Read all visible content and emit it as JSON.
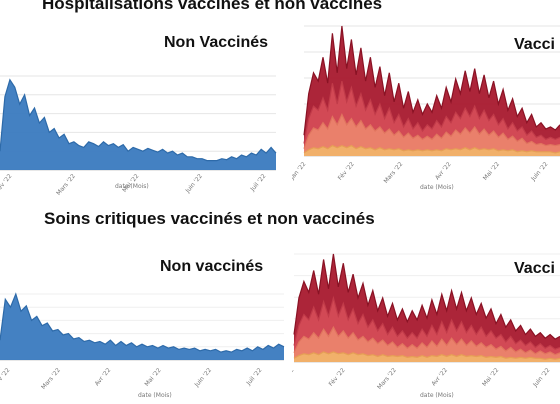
{
  "titles": {
    "top": "Hospitalisations vaccinés et non vaccinés",
    "bottom": "Soins critiques vaccinés et non vaccinés"
  },
  "colors": {
    "unvaccinated": "#3a7abf",
    "vax_dark": "#a8192e",
    "vax_mid": "#d8505a",
    "vax_light": "#ee8a70",
    "vax_orange": "#f2b86a"
  },
  "chart_data": [
    {
      "type": "area",
      "panel": "hosp-unvaccinated",
      "label": "Non Vaccinés",
      "xlabel": "date (Mois)",
      "x_ticks": [
        "Fév '22",
        "Mars '22",
        "Mai '22",
        "Juin '22",
        "Juil '22"
      ],
      "series": [
        {
          "values": [
            20,
            78,
            96,
            88,
            70,
            80,
            58,
            66,
            50,
            56,
            40,
            44,
            34,
            38,
            28,
            30,
            26,
            24,
            30,
            28,
            25,
            30,
            26,
            28,
            24,
            27,
            20,
            24,
            22,
            20,
            23,
            21,
            19,
            22,
            18,
            20,
            16,
            18,
            14,
            14,
            12,
            12,
            10,
            10,
            10,
            12,
            11,
            14,
            12,
            16,
            14,
            18,
            16,
            22,
            18,
            24,
            18
          ]
        }
      ]
    },
    {
      "type": "area",
      "panel": "hosp-vaccinated",
      "label": "Vacci",
      "xlabel": "date (Mois)",
      "x_ticks": [
        "Jan '22",
        "Fév '22",
        "Mars '22",
        "Avr '22",
        "Mai '22",
        "Juin '22"
      ],
      "series": [
        {
          "values": [
            20,
            60,
            80,
            72,
            95,
            70,
            118,
            80,
            125,
            84,
            112,
            78,
            104,
            72,
            95,
            66,
            86,
            58,
            80,
            52,
            70,
            46,
            62,
            42,
            54,
            40,
            50,
            42,
            58,
            46,
            66,
            52,
            74,
            60,
            82,
            62,
            84,
            60,
            78,
            56,
            72,
            50,
            64,
            44,
            55,
            38,
            46,
            32,
            40,
            28,
            32,
            26,
            28,
            25,
            30
          ]
        },
        {
          "values": [
            12,
            36,
            48,
            44,
            56,
            44,
            70,
            50,
            72,
            52,
            66,
            48,
            60,
            44,
            54,
            40,
            50,
            36,
            46,
            32,
            40,
            28,
            36,
            26,
            32,
            24,
            30,
            26,
            34,
            28,
            38,
            32,
            42,
            36,
            46,
            38,
            48,
            36,
            44,
            34,
            40,
            30,
            36,
            26,
            32,
            24,
            28,
            20,
            24,
            18,
            20,
            16,
            18,
            16,
            18
          ]
        },
        {
          "values": [
            7,
            20,
            27,
            25,
            32,
            26,
            38,
            30,
            40,
            30,
            36,
            28,
            34,
            26,
            30,
            24,
            28,
            22,
            26,
            20,
            24,
            18,
            22,
            17,
            20,
            16,
            19,
            16,
            21,
            17,
            23,
            19,
            25,
            21,
            27,
            22,
            28,
            21,
            26,
            20,
            24,
            18,
            22,
            16,
            19,
            14,
            17,
            12,
            14,
            11,
            12,
            10,
            11,
            10,
            11
          ]
        },
        {
          "values": [
            3,
            6,
            8,
            7,
            9,
            7,
            10,
            8,
            10,
            8,
            10,
            7,
            9,
            7,
            8,
            6,
            8,
            6,
            7,
            6,
            7,
            5,
            6,
            5,
            6,
            5,
            6,
            5,
            6,
            5,
            7,
            6,
            7,
            6,
            8,
            6,
            8,
            6,
            7,
            6,
            7,
            5,
            6,
            5,
            6,
            4,
            5,
            4,
            5,
            4,
            4,
            4,
            4,
            3,
            4
          ]
        }
      ]
    },
    {
      "type": "area",
      "panel": "icu-unvaccinated",
      "label": "Non vaccinés",
      "xlabel": "date (Mois)",
      "x_ticks": [
        "Fév '22",
        "Mars '22",
        "Avr '22",
        "Mai '22",
        "Juin '22",
        "Juil '22"
      ],
      "series": [
        {
          "values": [
            30,
            92,
            80,
            100,
            74,
            82,
            60,
            66,
            52,
            56,
            44,
            46,
            38,
            40,
            32,
            34,
            28,
            30,
            26,
            28,
            24,
            30,
            22,
            28,
            22,
            26,
            20,
            24,
            20,
            22,
            18,
            22,
            18,
            20,
            16,
            18,
            16,
            18,
            14,
            16,
            14,
            16,
            12,
            14,
            12,
            16,
            14,
            18,
            14,
            20,
            16,
            22,
            18,
            24,
            20
          ]
        }
      ]
    },
    {
      "type": "area",
      "panel": "icu-vaccinated",
      "label": "Vacci",
      "xlabel": "date (Mois)",
      "x_ticks": [
        "Jan '22",
        "Fév '22",
        "Mars '22",
        "Avr '22",
        "Mai '22",
        "Juin '22"
      ],
      "series": [
        {
          "values": [
            30,
            70,
            88,
            76,
            100,
            74,
            112,
            80,
            118,
            82,
            108,
            76,
            96,
            70,
            86,
            62,
            78,
            56,
            70,
            50,
            64,
            46,
            58,
            44,
            56,
            46,
            62,
            48,
            68,
            52,
            74,
            56,
            78,
            58,
            76,
            56,
            70,
            52,
            64,
            48,
            58,
            42,
            52,
            38,
            46,
            34,
            40,
            30,
            36,
            28,
            32,
            26,
            30,
            25,
            28
          ]
        },
        {
          "values": [
            18,
            40,
            52,
            46,
            60,
            46,
            66,
            50,
            70,
            50,
            64,
            46,
            58,
            42,
            52,
            38,
            46,
            34,
            42,
            30,
            38,
            28,
            34,
            26,
            32,
            26,
            36,
            28,
            40,
            30,
            44,
            32,
            46,
            34,
            44,
            32,
            40,
            30,
            38,
            28,
            34,
            26,
            30,
            22,
            28,
            20,
            24,
            18,
            22,
            16,
            20,
            15,
            18,
            14,
            16
          ]
        },
        {
          "values": [
            10,
            22,
            28,
            25,
            32,
            26,
            36,
            28,
            38,
            28,
            34,
            26,
            32,
            24,
            28,
            22,
            26,
            20,
            24,
            18,
            22,
            16,
            20,
            15,
            19,
            15,
            21,
            16,
            23,
            17,
            25,
            18,
            26,
            19,
            25,
            18,
            23,
            17,
            21,
            16,
            19,
            14,
            17,
            12,
            16,
            11,
            14,
            10,
            13,
            9,
            12,
            9,
            11,
            8,
            10
          ]
        },
        {
          "values": [
            4,
            7,
            9,
            8,
            10,
            8,
            11,
            9,
            11,
            9,
            10,
            8,
            10,
            8,
            9,
            7,
            8,
            6,
            8,
            6,
            7,
            6,
            7,
            5,
            6,
            5,
            7,
            5,
            7,
            6,
            8,
            6,
            8,
            6,
            8,
            6,
            7,
            6,
            7,
            5,
            6,
            5,
            6,
            4,
            5,
            4,
            5,
            4,
            5,
            4,
            4,
            3,
            4,
            3,
            4
          ]
        }
      ]
    }
  ]
}
